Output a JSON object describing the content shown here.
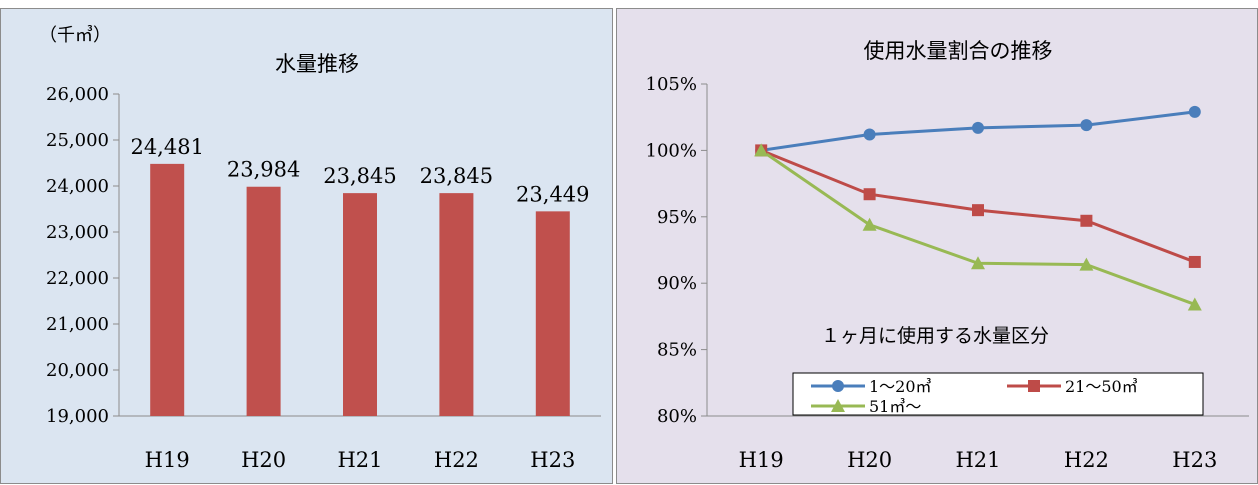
{
  "charts": {
    "left": {
      "unit_label": "（千㎥）",
      "chart_data": {
        "type": "bar",
        "title": "水量推移",
        "categories": [
          "H19",
          "H20",
          "H21",
          "H22",
          "H23"
        ],
        "values": [
          24481,
          23984,
          23845,
          23845,
          23449
        ],
        "value_labels": [
          "24,481",
          "23,984",
          "23,845",
          "23,845",
          "23,449"
        ],
        "ylim": [
          19000,
          26000
        ],
        "yticks": [
          19000,
          20000,
          21000,
          22000,
          23000,
          24000,
          25000,
          26000
        ],
        "ytick_labels": [
          "19,000",
          "20,000",
          "21,000",
          "22,000",
          "23,000",
          "24,000",
          "25,000",
          "26,000"
        ],
        "grid": false,
        "bar_color": "#c0504d"
      }
    },
    "right": {
      "annotation": "１ヶ月に使用する水量区分",
      "chart_data": {
        "type": "line",
        "title": "使用水量割合の推移",
        "categories": [
          "H19",
          "H20",
          "H21",
          "H22",
          "H23"
        ],
        "ylim": [
          80,
          105
        ],
        "yticks": [
          80,
          85,
          90,
          95,
          100,
          105
        ],
        "ytick_labels": [
          "80%",
          "85%",
          "90%",
          "95%",
          "100%",
          "105%"
        ],
        "legend_position": "bottom",
        "grid": false,
        "series": [
          {
            "name": "1〜20㎥",
            "values": [
              100,
              101.2,
              101.7,
              101.9,
              102.9
            ],
            "color": "#4a7ebb",
            "marker": "circle"
          },
          {
            "name": "21〜50㎥",
            "values": [
              100,
              96.7,
              95.5,
              94.7,
              91.6
            ],
            "color": "#be4b48",
            "marker": "square"
          },
          {
            "name": "51㎥〜",
            "values": [
              100,
              94.4,
              91.5,
              91.4,
              88.4
            ],
            "color": "#98b954",
            "marker": "triangle"
          }
        ]
      }
    }
  }
}
